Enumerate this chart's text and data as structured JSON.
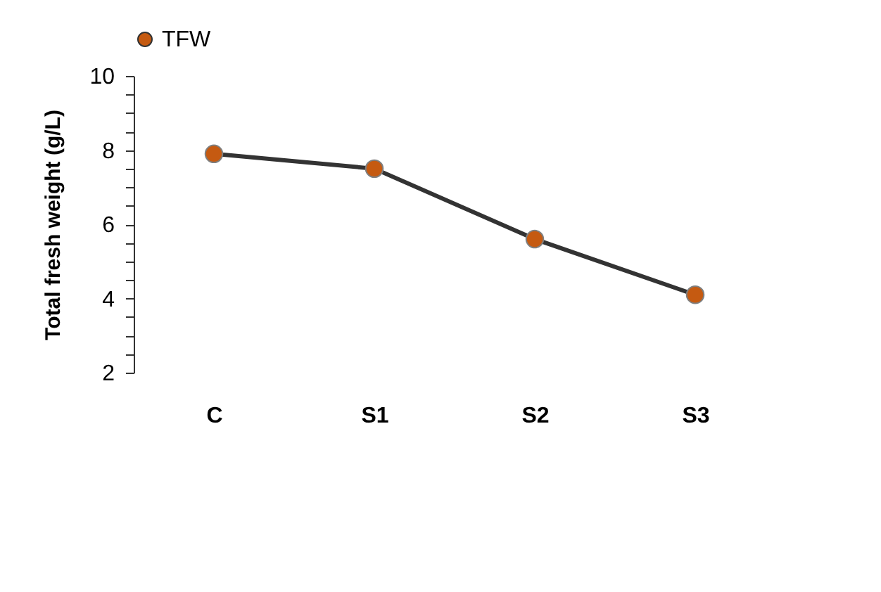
{
  "chart_data": {
    "type": "line",
    "ylabel": "Total fresh weight (g/L)",
    "categories": [
      "C",
      "S1",
      "S2",
      "S3"
    ],
    "series": [
      {
        "name": "TFW",
        "color": "#c55a11",
        "values": [
          7.9,
          7.5,
          5.6,
          4.1
        ]
      }
    ],
    "ylim": [
      2,
      10
    ],
    "yticks": [
      2,
      {
        "value": 2.5,
        "label": null
      },
      {
        "value": 3,
        "label": null
      },
      {
        "value": 3.5,
        "label": null
      },
      4,
      {
        "value": 4.5,
        "label": null
      },
      {
        "value": 5,
        "label": null
      },
      {
        "value": 5.5,
        "label": null
      },
      6,
      {
        "value": 6.5,
        "label": null
      },
      {
        "value": 7,
        "label": null
      },
      {
        "value": 7.5,
        "label": null
      },
      8,
      {
        "value": 8.5,
        "label": null
      },
      {
        "value": 9,
        "label": null
      },
      {
        "value": 9.5,
        "label": null
      },
      10
    ],
    "legend": "top",
    "marker": "circle",
    "line_style": "solid",
    "grid": false
  }
}
